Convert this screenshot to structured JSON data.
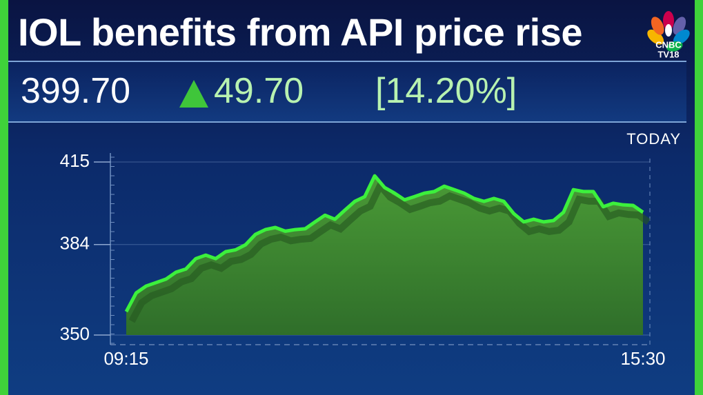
{
  "header": {
    "title": "IOL benefits from API price rise",
    "logo": [
      "CNBC",
      "TV18"
    ]
  },
  "quote": {
    "price": "399.70",
    "change": "49.70",
    "change_percent": "[14.20%]"
  },
  "chart_data": {
    "type": "area",
    "label": "TODAY",
    "color": "#3cf03c",
    "fill": "#3c8a2c",
    "categories": [
      "09:15",
      null,
      null,
      null,
      null,
      null,
      null,
      null,
      null,
      null,
      null,
      null,
      null,
      null,
      null,
      null,
      null,
      null,
      null,
      null,
      null,
      null,
      null,
      null,
      null,
      null,
      null,
      null,
      null,
      null,
      null,
      null,
      null,
      null,
      null,
      null,
      null,
      null,
      null,
      null,
      null,
      null,
      null,
      null,
      null,
      null,
      null,
      null,
      null,
      null,
      null,
      null,
      "15:30"
    ],
    "values": [
      358.8,
      365.8,
      368.4,
      369.7,
      371.0,
      373.6,
      374.8,
      378.7,
      380.0,
      378.7,
      381.3,
      382.0,
      383.9,
      387.8,
      389.6,
      390.4,
      389.0,
      389.6,
      389.9,
      392.5,
      395.0,
      393.5,
      396.9,
      400.2,
      402.0,
      409.8,
      405.4,
      403.3,
      400.8,
      402.0,
      403.3,
      403.9,
      405.9,
      404.6,
      403.3,
      401.3,
      400.2,
      401.3,
      400.2,
      395.6,
      392.5,
      393.5,
      392.5,
      393.0,
      396.1,
      404.6,
      403.9,
      403.9,
      398.2,
      399.5,
      398.9,
      398.7,
      396.1
    ],
    "ylim": [
      350,
      415
    ],
    "yticks": [
      350,
      384,
      415
    ],
    "grid": true
  }
}
